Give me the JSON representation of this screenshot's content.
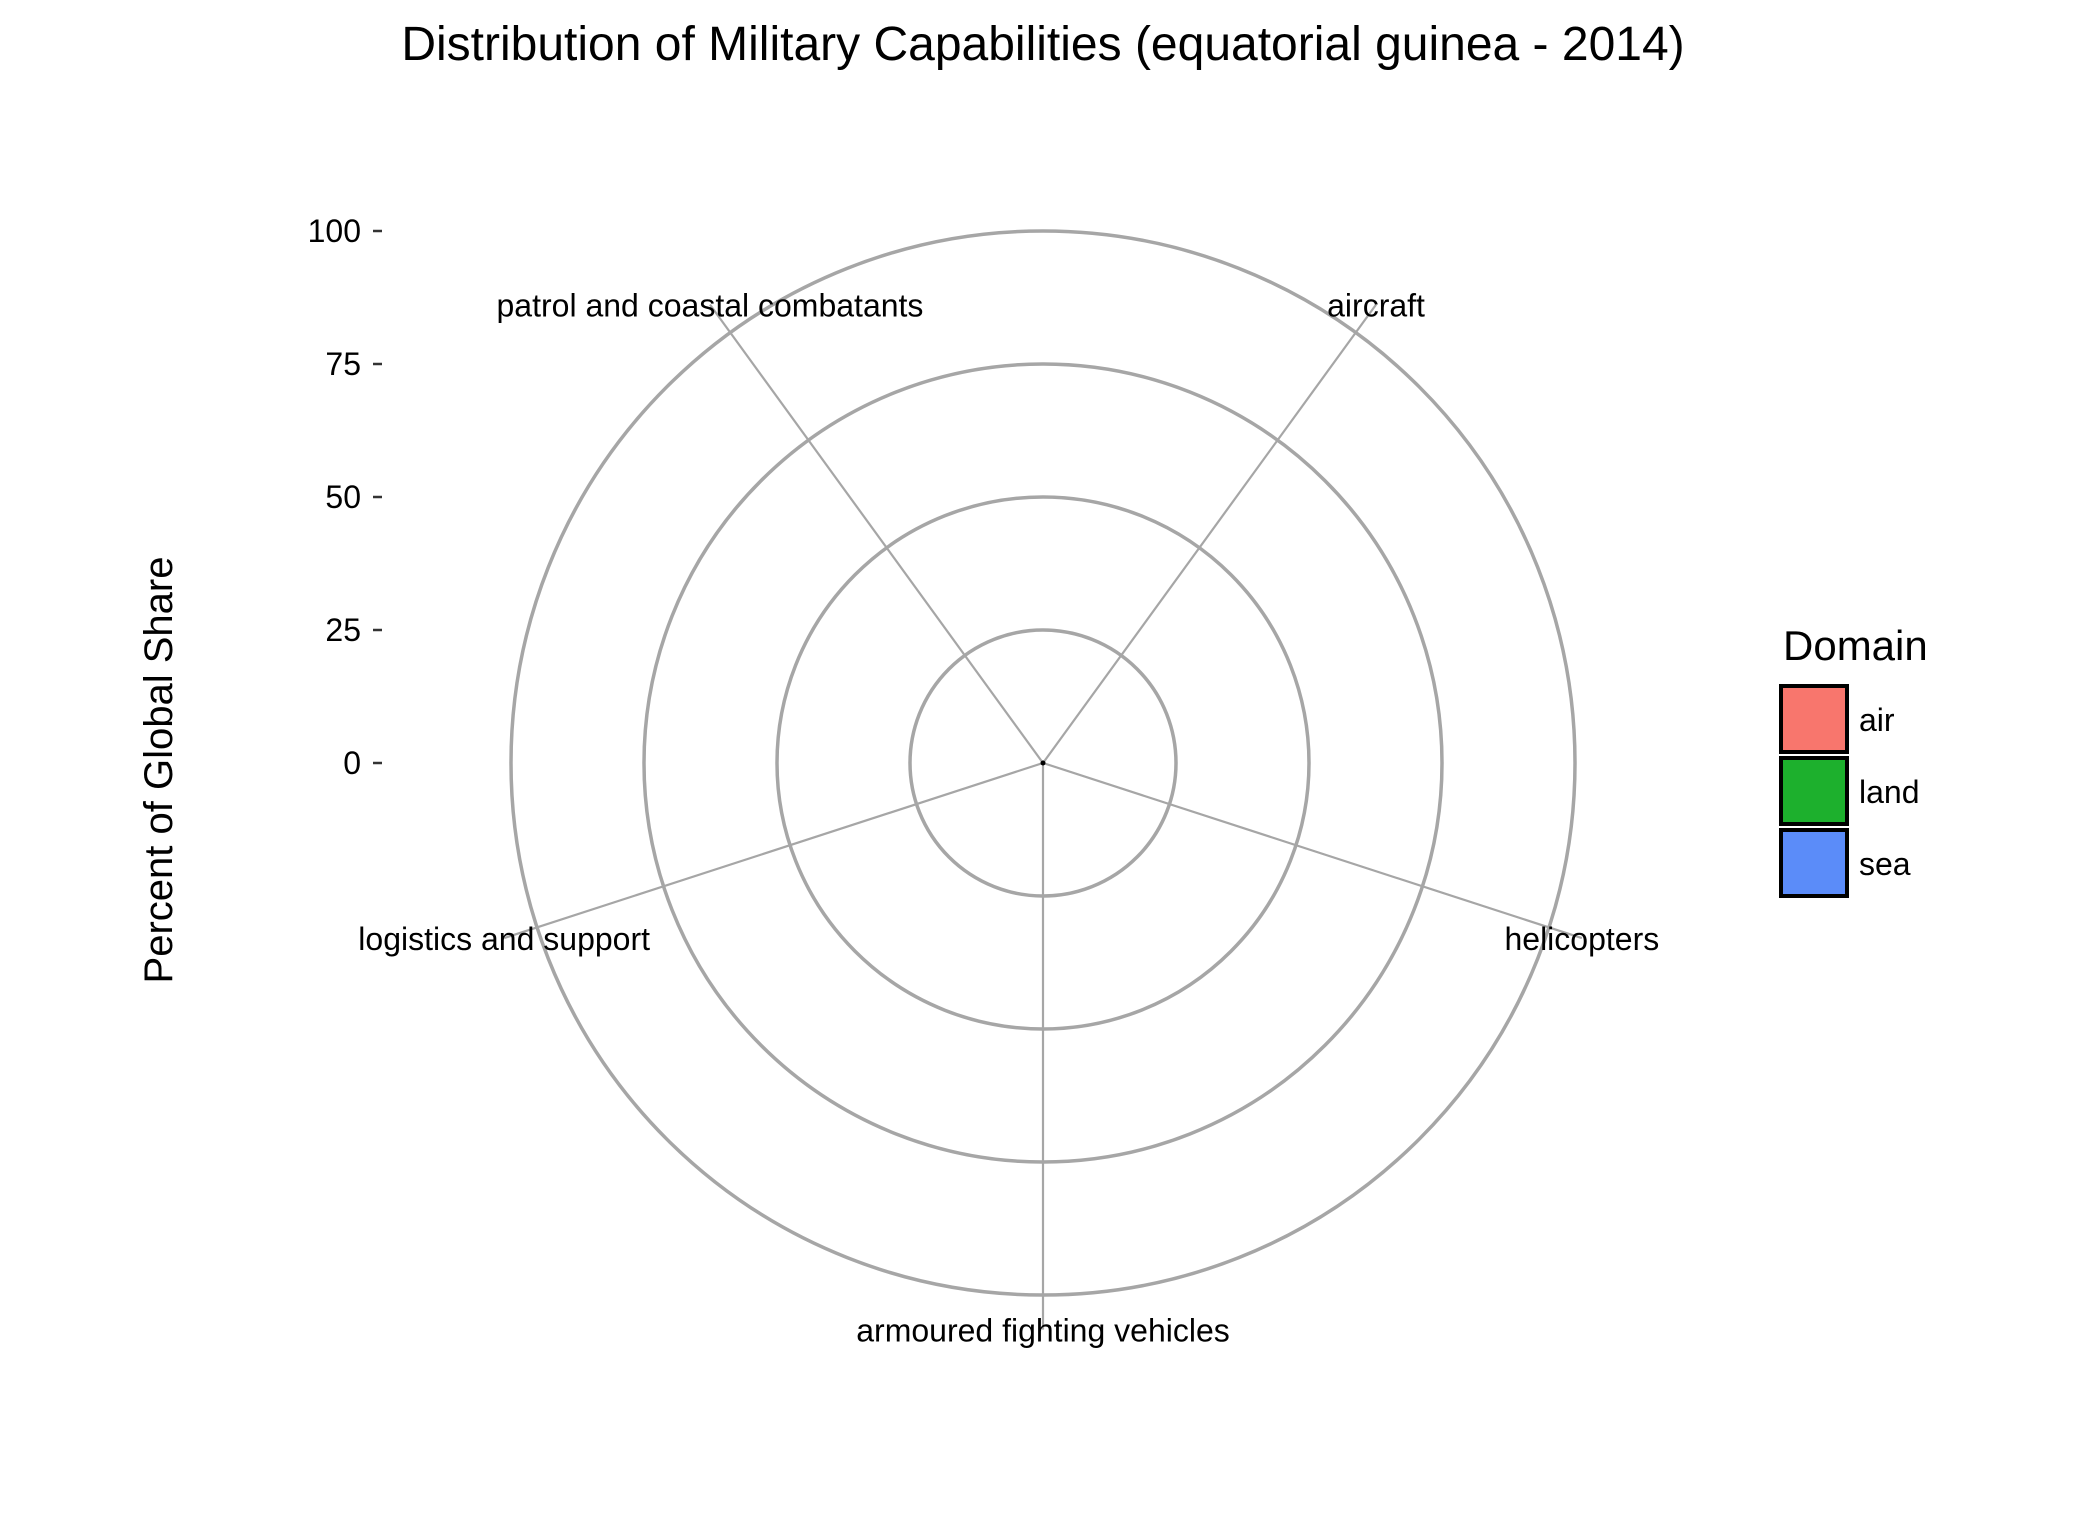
{
  "chart_data": {
    "type": "polar-bar",
    "title": "Distribution of Military Capabilities (equatorial guinea - 2014)",
    "xlabel": "",
    "ylabel": "Percent of Global Share",
    "ylim": [
      0,
      100
    ],
    "yticks": [
      0,
      25,
      50,
      75,
      100
    ],
    "grid": true,
    "categories": [
      {
        "label": "aircraft",
        "domain": "air",
        "value": 0
      },
      {
        "label": "helicopters",
        "domain": "air",
        "value": 0
      },
      {
        "label": "armoured fighting vehicles",
        "domain": "land",
        "value": 0
      },
      {
        "label": "logistics and support",
        "domain": "sea",
        "value": 0
      },
      {
        "label": "patrol and coastal combatants",
        "domain": "sea",
        "value": 0
      }
    ],
    "legend": {
      "title": "Domain",
      "position": "right",
      "items": [
        {
          "label": "air",
          "color": "#F8766D"
        },
        {
          "label": "land",
          "color": "#1DB02D"
        },
        {
          "label": "sea",
          "color": "#5B8CF9"
        }
      ]
    },
    "grid_color": "#a6a6a6"
  }
}
